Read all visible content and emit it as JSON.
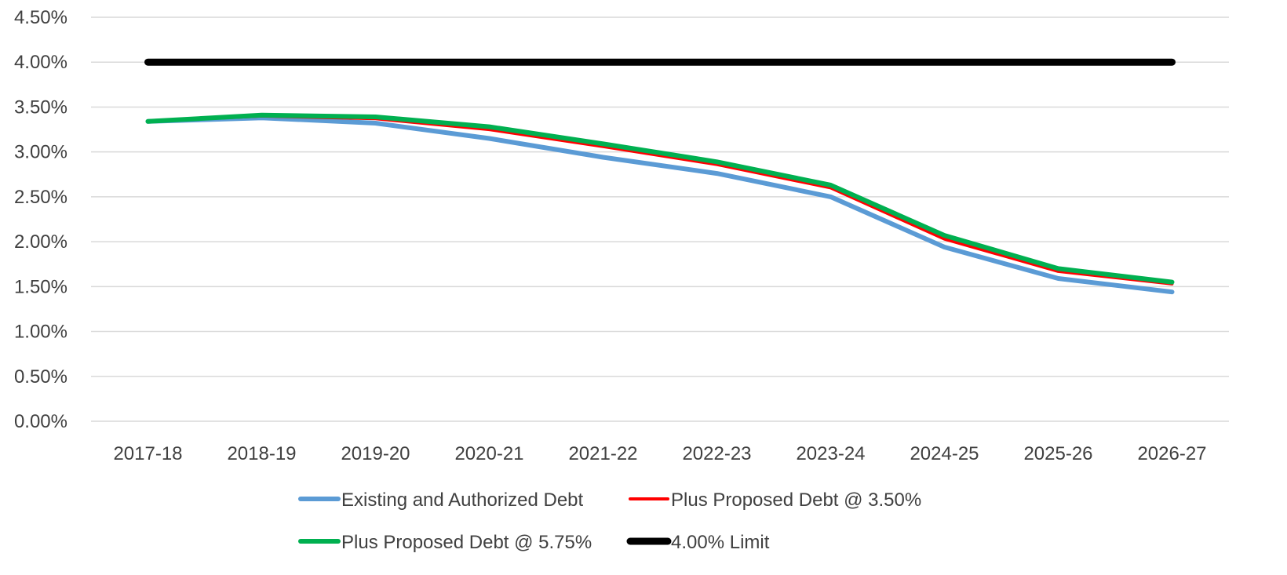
{
  "chart_data": {
    "type": "line",
    "categories": [
      "2017-18",
      "2018-19",
      "2019-20",
      "2020-21",
      "2021-22",
      "2022-23",
      "2023-24",
      "2024-25",
      "2025-26",
      "2026-27"
    ],
    "y_tick_labels": [
      "0.00%",
      "0.50%",
      "1.00%",
      "1.50%",
      "2.00%",
      "2.50%",
      "3.00%",
      "3.50%",
      "4.00%",
      "4.50%"
    ],
    "ylim": [
      0,
      4.5
    ],
    "grid": true,
    "legend_position": "bottom",
    "series": [
      {
        "name": "Existing and Authorized Debt",
        "color": "#5b9bd5",
        "values": [
          3.34,
          3.38,
          3.32,
          3.15,
          2.94,
          2.76,
          2.5,
          1.94,
          1.59,
          1.44
        ]
      },
      {
        "name": "Plus Proposed Debt @ 3.50%",
        "color": "#ff0000",
        "values": [
          3.34,
          3.4,
          3.37,
          3.25,
          3.06,
          2.86,
          2.6,
          2.03,
          1.67,
          1.53
        ]
      },
      {
        "name": "Plus Proposed Debt @ 5.75%",
        "color": "#00b050",
        "values": [
          3.34,
          3.41,
          3.39,
          3.28,
          3.09,
          2.89,
          2.63,
          2.07,
          1.7,
          1.55
        ]
      },
      {
        "name": "4.00% Limit",
        "color": "#000000",
        "values": [
          4.0,
          4.0,
          4.0,
          4.0,
          4.0,
          4.0,
          4.0,
          4.0,
          4.0,
          4.0
        ]
      }
    ]
  }
}
